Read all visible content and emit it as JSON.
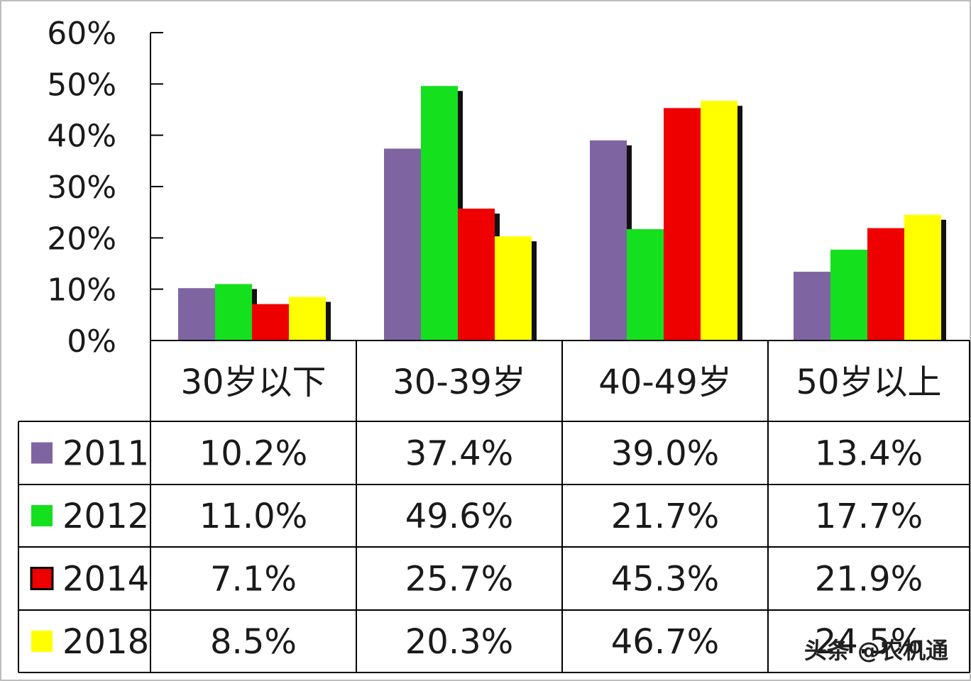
{
  "chart_data": {
    "type": "bar",
    "categories": [
      "30岁以下",
      "30-39岁",
      "40-49岁",
      "50岁以上"
    ],
    "y_ticks": [
      "0%",
      "10%",
      "20%",
      "30%",
      "40%",
      "50%",
      "60%"
    ],
    "ylim": [
      0,
      60
    ],
    "grid": false,
    "legend": "data-table-bottom",
    "series": [
      {
        "name": "2011",
        "color": "#7f64a2",
        "values": [
          10.2,
          37.4,
          39.0,
          13.4
        ],
        "labels": [
          "10.2%",
          "37.4%",
          "39.0%",
          "13.4%"
        ]
      },
      {
        "name": "2012",
        "color": "#14e01e",
        "values": [
          11.0,
          49.6,
          21.7,
          17.7
        ],
        "labels": [
          "11.0%",
          "49.6%",
          "21.7%",
          "17.7%"
        ]
      },
      {
        "name": "2014",
        "color": "#ee0000",
        "values": [
          7.1,
          25.7,
          45.3,
          21.9
        ],
        "labels": [
          "7.1%",
          "25.7%",
          "45.3%",
          "21.9%"
        ]
      },
      {
        "name": "2018",
        "color": "#ffff00",
        "values": [
          8.5,
          20.3,
          46.7,
          24.5
        ],
        "labels": [
          "8.5%",
          "20.3%",
          "46.7%",
          "24.5%"
        ]
      }
    ]
  },
  "watermark": "头条 @农机通"
}
